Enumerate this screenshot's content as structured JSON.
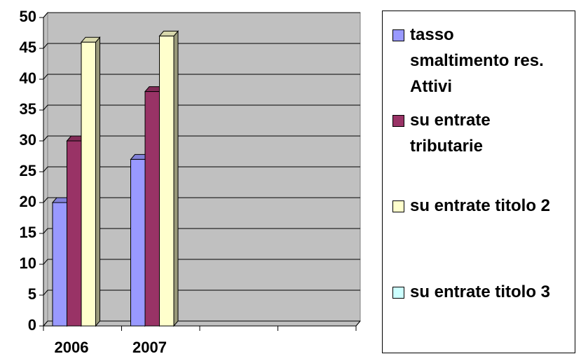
{
  "chart_data": {
    "type": "bar3d",
    "categories": [
      "2006",
      "2007",
      null,
      null
    ],
    "series": [
      {
        "name": "tasso smaltimento res. Attivi",
        "color": "#9999ff",
        "values": [
          20,
          27,
          null,
          null
        ]
      },
      {
        "name": "su entrate tributarie",
        "color": "#993366",
        "values": [
          30,
          38,
          null,
          null
        ]
      },
      {
        "name": "su entrate titolo 2",
        "color": "#ffffcc",
        "values": [
          46,
          47,
          null,
          null
        ]
      },
      {
        "name": "su entrate titolo 3",
        "color": "#ccffff",
        "values": [
          null,
          null,
          null,
          null
        ]
      }
    ],
    "ylim": [
      0,
      50
    ],
    "yticks": [
      0,
      5,
      10,
      15,
      20,
      25,
      30,
      35,
      40,
      45,
      50
    ],
    "grid": true,
    "legend": "right",
    "wall_color": "#c0c0c0"
  }
}
